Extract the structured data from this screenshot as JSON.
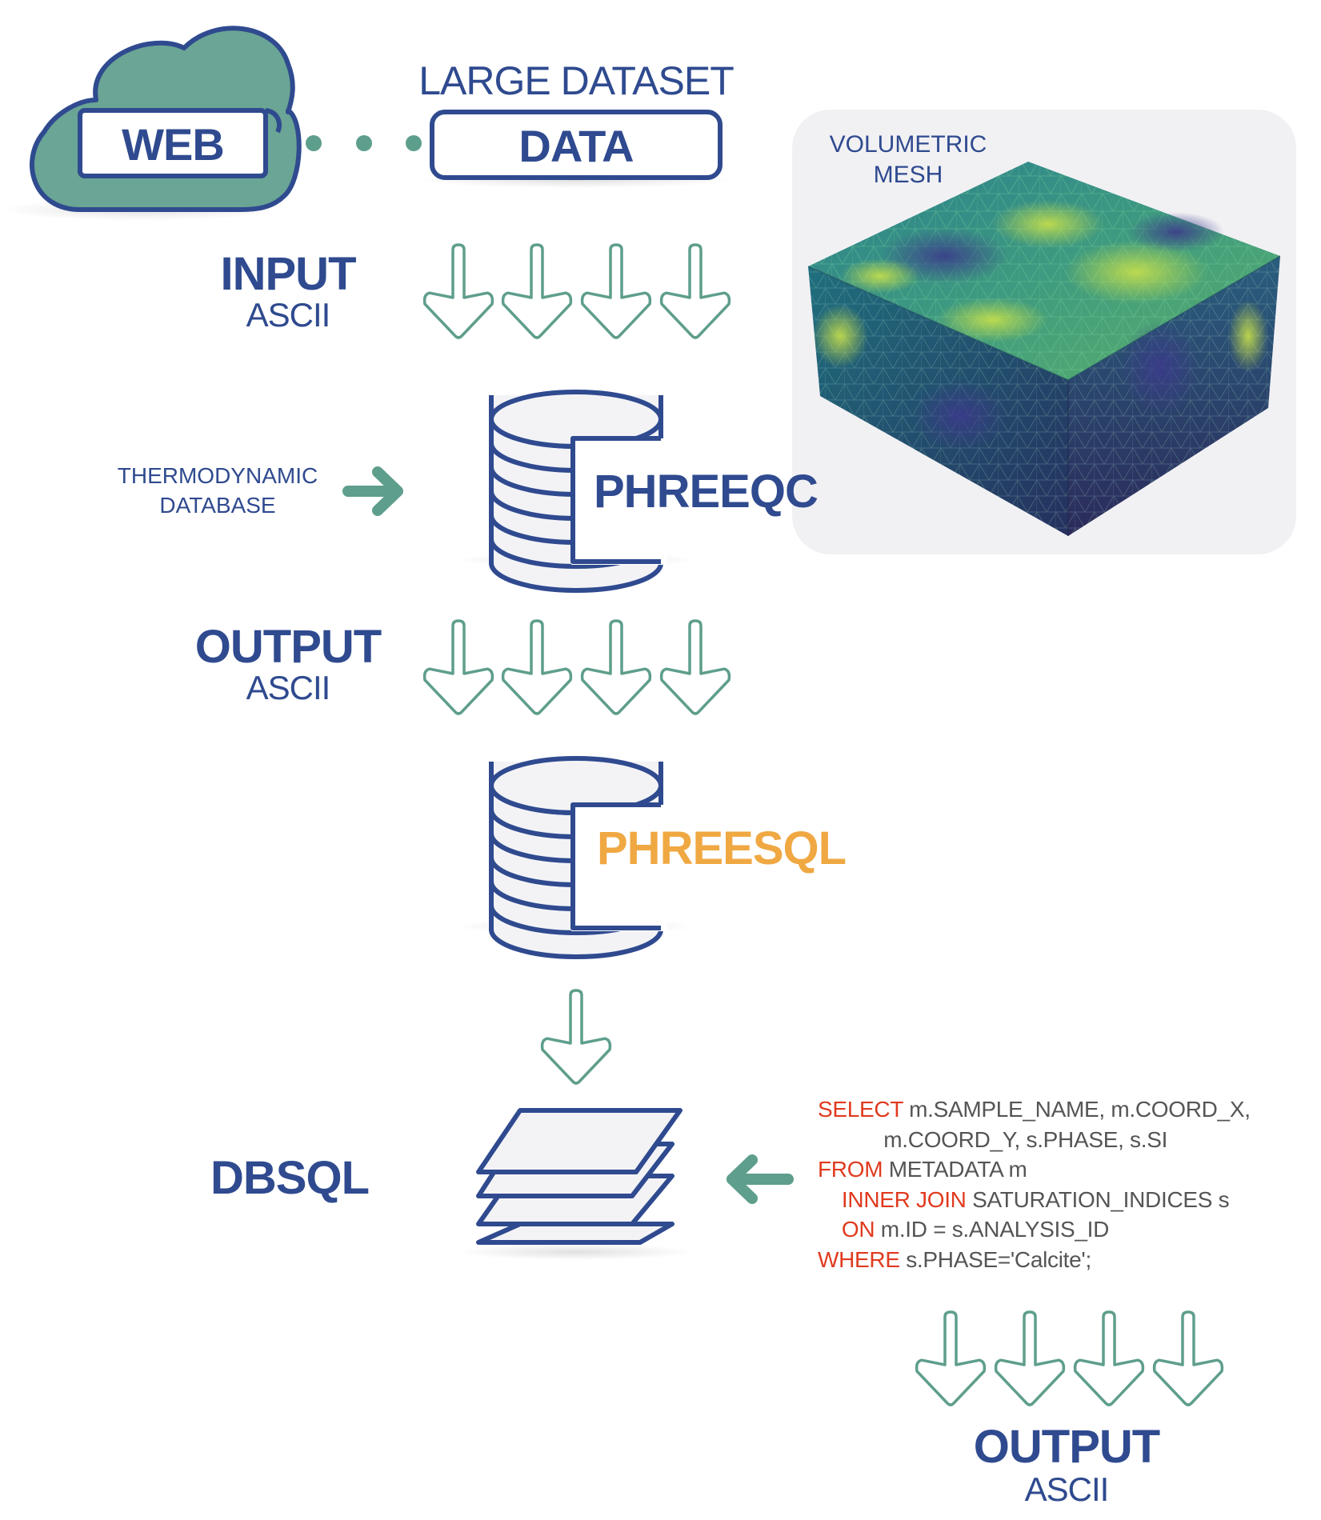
{
  "cloud": {
    "label": "WEB"
  },
  "dataset": {
    "caption": "LARGE DATASET",
    "label": "DATA"
  },
  "mesh": {
    "line1": "VOLUMETRIC",
    "line2": "MESH"
  },
  "input": {
    "title": "INPUT",
    "subtitle": "ASCII"
  },
  "thermo": {
    "line1": "THERMODYNAMIC",
    "line2": "DATABASE"
  },
  "phreeqc": {
    "label": "PHREEQC"
  },
  "output1": {
    "title": "OUTPUT",
    "subtitle": "ASCII"
  },
  "phreesql": {
    "label": "PHREESQL"
  },
  "dbsql": {
    "label": "DBSQL"
  },
  "sql": {
    "l1_kw": "SELECT",
    "l1_rest": " m.SAMPLE_NAME, m.COORD_X,",
    "l2_rest": "           m.COORD_Y, s.PHASE, s.SI",
    "l3_kw": "FROM",
    "l3_rest": " METADATA m",
    "l4_indent": "    ",
    "l4_kw": "INNER JOIN",
    "l4_rest": " SATURATION_INDICES s",
    "l5_indent": "    ",
    "l5_kw": "ON",
    "l5_rest": " m.ID = s.ANALYSIS_ID",
    "l6_kw": "WHERE",
    "l6_rest": " s.PHASE='Calcite';"
  },
  "output2": {
    "title": "OUTPUT",
    "subtitle": "ASCII"
  },
  "colors": {
    "navy": "#2f4a8f",
    "teal": "#5e9e8c",
    "cloud_fill": "#6aa595",
    "orange": "#f0a843",
    "sql_keyword": "#e03a1e",
    "sql_text": "#555555",
    "panel_bg": "#f1f1f4"
  },
  "icons": [
    "cloud-icon",
    "database-icon",
    "layers-icon",
    "down-arrow-icon",
    "right-arrow-icon",
    "left-arrow-icon",
    "dotted-connector"
  ]
}
